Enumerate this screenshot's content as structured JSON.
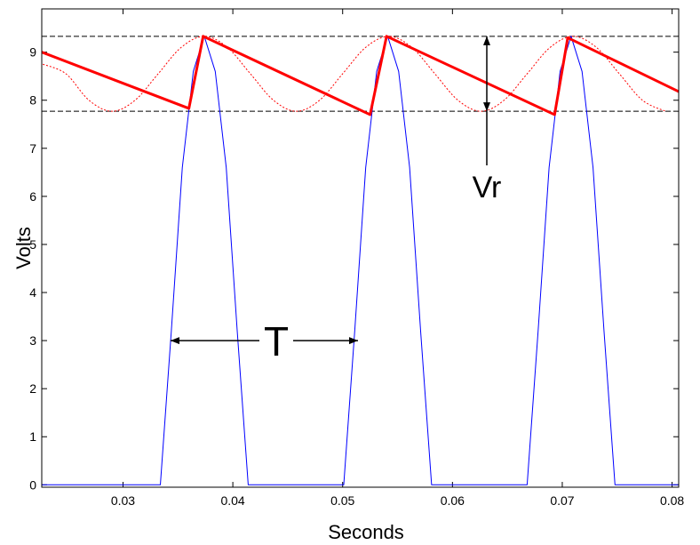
{
  "chart_data": {
    "type": "line",
    "x_label": "Seconds",
    "y_label": "Volts",
    "xlim": [
      0.0226,
      0.0806
    ],
    "ylim": [
      -0.05,
      9.9
    ],
    "xticks": [
      0.03,
      0.04,
      0.05,
      0.06,
      0.07,
      0.08
    ],
    "yticks": [
      0,
      1,
      2,
      3,
      4,
      5,
      6,
      7,
      8,
      9
    ],
    "hlines": [
      9.33,
      7.77
    ],
    "annotations": [
      "T",
      "Vr"
    ],
    "series": [
      {
        "color": "#0000ff",
        "line_width": 1,
        "line_style": "solid",
        "smooth": false,
        "x": [
          0.0226,
          0.0334,
          0.0339,
          0.0344,
          0.0354,
          0.0364,
          0.0374,
          0.0384,
          0.0394,
          0.0404,
          0.0409,
          0.0414,
          0.0501,
          0.0506,
          0.0511,
          0.0521,
          0.0531,
          0.0541,
          0.0551,
          0.0561,
          0.0571,
          0.0576,
          0.0581,
          0.0668,
          0.0673,
          0.0678,
          0.0688,
          0.0698,
          0.0708,
          0.0718,
          0.0728,
          0.0738,
          0.0743,
          0.0748,
          0.0806
        ],
        "values": [
          0,
          0,
          1.6,
          3.2,
          6.6,
          8.6,
          9.33,
          8.6,
          6.6,
          3.2,
          1.6,
          0,
          0,
          1.6,
          3.2,
          6.6,
          8.6,
          9.33,
          8.6,
          6.6,
          3.2,
          1.6,
          0,
          0,
          1.6,
          3.2,
          6.6,
          8.6,
          9.33,
          8.6,
          6.6,
          3.2,
          1.6,
          0,
          0
        ]
      },
      {
        "color": "#ff0000",
        "line_width": 3,
        "line_style": "solid",
        "smooth": false,
        "x": [
          0.0226,
          0.036,
          0.0373,
          0.0525,
          0.054,
          0.0693,
          0.0705,
          0.0806
        ],
        "values": [
          9.0,
          7.83,
          9.33,
          7.7,
          9.33,
          7.7,
          9.3,
          8.18
        ]
      },
      {
        "color": "#ff0000",
        "line_width": 1,
        "line_style": "dotted",
        "smooth": true,
        "x": [
          0.0227,
          0.0248,
          0.0269,
          0.029,
          0.0311,
          0.0332,
          0.0353,
          0.0374,
          0.0395,
          0.0416,
          0.0437,
          0.0458,
          0.0479,
          0.05,
          0.0521,
          0.0542,
          0.0563,
          0.0584,
          0.0605,
          0.0626,
          0.0647,
          0.0668,
          0.0689,
          0.071,
          0.0731,
          0.0752,
          0.0773,
          0.0794
        ],
        "values": [
          8.75,
          8.55,
          8.0,
          7.77,
          8.0,
          8.55,
          9.1,
          9.33,
          9.1,
          8.55,
          8.0,
          7.77,
          8.0,
          8.55,
          9.1,
          9.33,
          9.1,
          8.55,
          8.0,
          7.77,
          8.0,
          8.55,
          9.1,
          9.33,
          9.1,
          8.55,
          8.0,
          7.77
        ]
      }
    ]
  }
}
